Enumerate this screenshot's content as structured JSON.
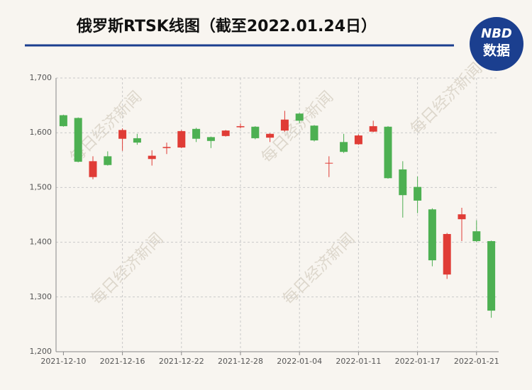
{
  "chart_data": {
    "type": "candlestick",
    "title": "俄罗斯RTSK线图（截至2022.01.24日）",
    "logo": {
      "top": "NBD",
      "bottom": "数据"
    },
    "watermark": "每日经济新闻",
    "categories": [
      "2021-12-10",
      null,
      null,
      null,
      "2021-12-16",
      null,
      null,
      null,
      "2021-12-22",
      null,
      null,
      null,
      "2021-12-28",
      null,
      null,
      null,
      "2022-01-04",
      null,
      null,
      null,
      "2022-01-11",
      null,
      null,
      null,
      "2022-01-17",
      null,
      null,
      null,
      "2022-01-21",
      null
    ],
    "open": [
      1632,
      1627,
      1519,
      1557,
      1589,
      1590,
      1552,
      1572,
      1573,
      1607,
      1592,
      1594,
      1610,
      1611,
      1591,
      1604,
      1635,
      1613,
      1544,
      1583,
      1579,
      1602,
      1611,
      1533,
      1501,
      1460,
      1341,
      1442,
      1420,
      1402
    ],
    "high": [
      1633,
      1628,
      1557,
      1566,
      1608,
      1598,
      1568,
      1582,
      1605,
      1609,
      1593,
      1605,
      1617,
      1612,
      1599,
      1640,
      1636,
      1614,
      1557,
      1598,
      1597,
      1622,
      1612,
      1548,
      1520,
      1462,
      1417,
      1463,
      1440,
      1403
    ],
    "low": [
      1611,
      1546,
      1515,
      1540,
      1567,
      1578,
      1540,
      1561,
      1572,
      1583,
      1572,
      1593,
      1608,
      1588,
      1583,
      1602,
      1617,
      1584,
      1519,
      1563,
      1578,
      1601,
      1516,
      1445,
      1453,
      1356,
      1333,
      1402,
      1400,
      1262
    ],
    "close": [
      1612,
      1547,
      1548,
      1541,
      1605,
      1582,
      1558,
      1574,
      1603,
      1589,
      1585,
      1604,
      1612,
      1590,
      1598,
      1624,
      1622,
      1586,
      1545,
      1565,
      1595,
      1612,
      1517,
      1486,
      1476,
      1367,
      1415,
      1451,
      1402,
      1275
    ],
    "up_color": "#e03c36",
    "down_color": "#4db052",
    "ylim": [
      1200,
      1700
    ],
    "yticks": [
      {
        "value": 1200,
        "label": "1,200"
      },
      {
        "value": 1300,
        "label": "1,300"
      },
      {
        "value": 1400,
        "label": "1,400"
      },
      {
        "value": 1500,
        "label": "1,500"
      },
      {
        "value": 1600,
        "label": "1,600"
      },
      {
        "value": 1700,
        "label": "1,700"
      }
    ],
    "grid": true
  }
}
